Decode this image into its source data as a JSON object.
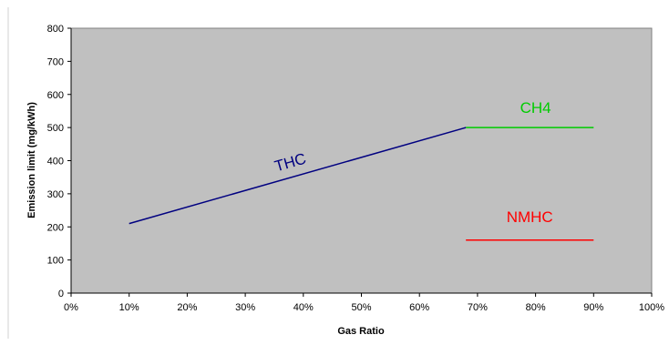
{
  "chart_data": {
    "type": "line",
    "title": "",
    "xlabel": "Gas Ratio",
    "ylabel": "Emission limit (mg/kWh)",
    "xlim": [
      0,
      100
    ],
    "ylim": [
      0,
      800
    ],
    "x_tick_values": [
      0,
      10,
      20,
      30,
      40,
      50,
      60,
      70,
      80,
      90,
      100
    ],
    "x_tick_labels": [
      "0%",
      "10%",
      "20%",
      "30%",
      "40%",
      "50%",
      "60%",
      "70%",
      "80%",
      "90%",
      "100%"
    ],
    "y_tick_values": [
      0,
      100,
      200,
      300,
      400,
      500,
      600,
      700,
      800
    ],
    "y_tick_labels": [
      "0",
      "100",
      "200",
      "300",
      "400",
      "500",
      "600",
      "700",
      "800"
    ],
    "plot_background": "#c0c0c0",
    "grid": false,
    "legend": "none",
    "series": [
      {
        "name": "THC",
        "color": "#000080",
        "x": [
          10,
          68
        ],
        "y": [
          210,
          500
        ],
        "label_at": {
          "x": 38,
          "y": 380,
          "rotate_with_line": true
        }
      },
      {
        "name": "CH4",
        "color": "#00cc00",
        "x": [
          68,
          90
        ],
        "y": [
          500,
          500
        ],
        "label_at": {
          "x": 80,
          "y": 545,
          "rotate_with_line": false
        }
      },
      {
        "name": "NMHC",
        "color": "#ff0000",
        "x": [
          68,
          90
        ],
        "y": [
          160,
          160
        ],
        "label_at": {
          "x": 79,
          "y": 215,
          "rotate_with_line": false
        }
      }
    ]
  }
}
